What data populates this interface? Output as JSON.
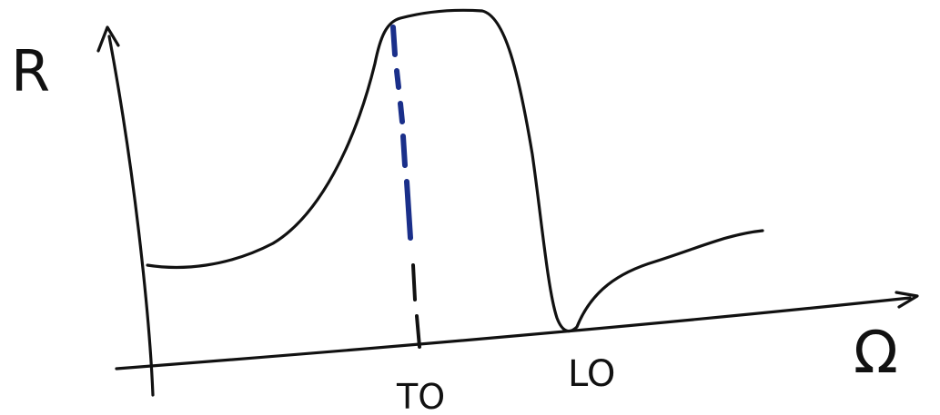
{
  "labels": {
    "y_axis": "R",
    "x_axis": "Ω",
    "marker_to": "TO",
    "marker_lo": "LO"
  },
  "colors": {
    "ink": "#111111",
    "blue_marker": "#1a2f8a",
    "background": "#ffffff"
  },
  "markers": [
    "TO",
    "LO"
  ]
}
